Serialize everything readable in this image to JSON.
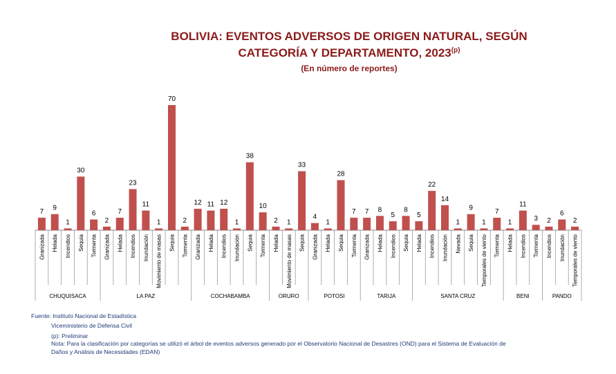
{
  "chart_data": {
    "type": "bar",
    "title_line1": "BOLIVIA: EVENTOS ADVERSOS DE ORIGEN NATURAL, SEGÚN",
    "title_line2": "CATEGORÍA Y DEPARTAMENTO, 2023",
    "title_sup": "(p)",
    "subtitle": "(En número de reportes)",
    "ylim": [
      0,
      70
    ],
    "bar_color": "#c0504d",
    "groups": [
      {
        "name": "CHUQUISACA",
        "categories": [
          "Granizada",
          "Helada",
          "Incendios",
          "Sequia",
          "Tormenta"
        ],
        "values": [
          7,
          9,
          1,
          30,
          6
        ]
      },
      {
        "name": "LA PAZ",
        "categories": [
          "Granizada",
          "Helada",
          "Incendios",
          "Inundación",
          "Movimiento de masas",
          "Sequia",
          "Tormenta"
        ],
        "values": [
          2,
          7,
          23,
          11,
          1,
          70,
          2
        ]
      },
      {
        "name": "COCHABAMBA",
        "categories": [
          "Granizada",
          "Helada",
          "Incendios",
          "Inundación",
          "Sequia",
          "Tormenta"
        ],
        "values": [
          12,
          11,
          12,
          1,
          38,
          10
        ]
      },
      {
        "name": "ORURO",
        "categories": [
          "Helada",
          "Movimiento de masas",
          "Sequia"
        ],
        "values": [
          2,
          1,
          33
        ]
      },
      {
        "name": "POTOSI",
        "categories": [
          "Granizada",
          "Helada",
          "Sequia",
          "Tormenta"
        ],
        "values": [
          4,
          1,
          28,
          7
        ]
      },
      {
        "name": "TARIJA",
        "categories": [
          "Granizada",
          "Helada",
          "Incendios",
          "Sequia"
        ],
        "values": [
          7,
          8,
          5,
          8
        ]
      },
      {
        "name": "SANTA CRUZ",
        "categories": [
          "Helada",
          "Incendios",
          "Inundación",
          "Nevada",
          "Sequia",
          "Temporales de viento",
          "Tormenta"
        ],
        "values": [
          5,
          22,
          14,
          1,
          9,
          1,
          7
        ]
      },
      {
        "name": "BENI",
        "categories": [
          "Helada",
          "Incendios",
          "Tormenta"
        ],
        "values": [
          1,
          11,
          3
        ]
      },
      {
        "name": "PANDO",
        "categories": [
          "Incendios",
          "Inundación",
          "Temporales de viento"
        ],
        "values": [
          2,
          6,
          2
        ]
      }
    ]
  },
  "notes": {
    "source": "Fuente: Instituto Nacional de Estadística",
    "source2": "Viceministerio de Defensa Civil",
    "prelim": "(p): Preliminar",
    "note1": "Nota: Para la clasificación por categorías se utilizó el árbol de eventos adversos generado por el Observatorio Nacional de Desastres (OND) para el Sistema de Evaluación de",
    "note2": "Daños y Análisis de Necesidades (EDAN)"
  }
}
